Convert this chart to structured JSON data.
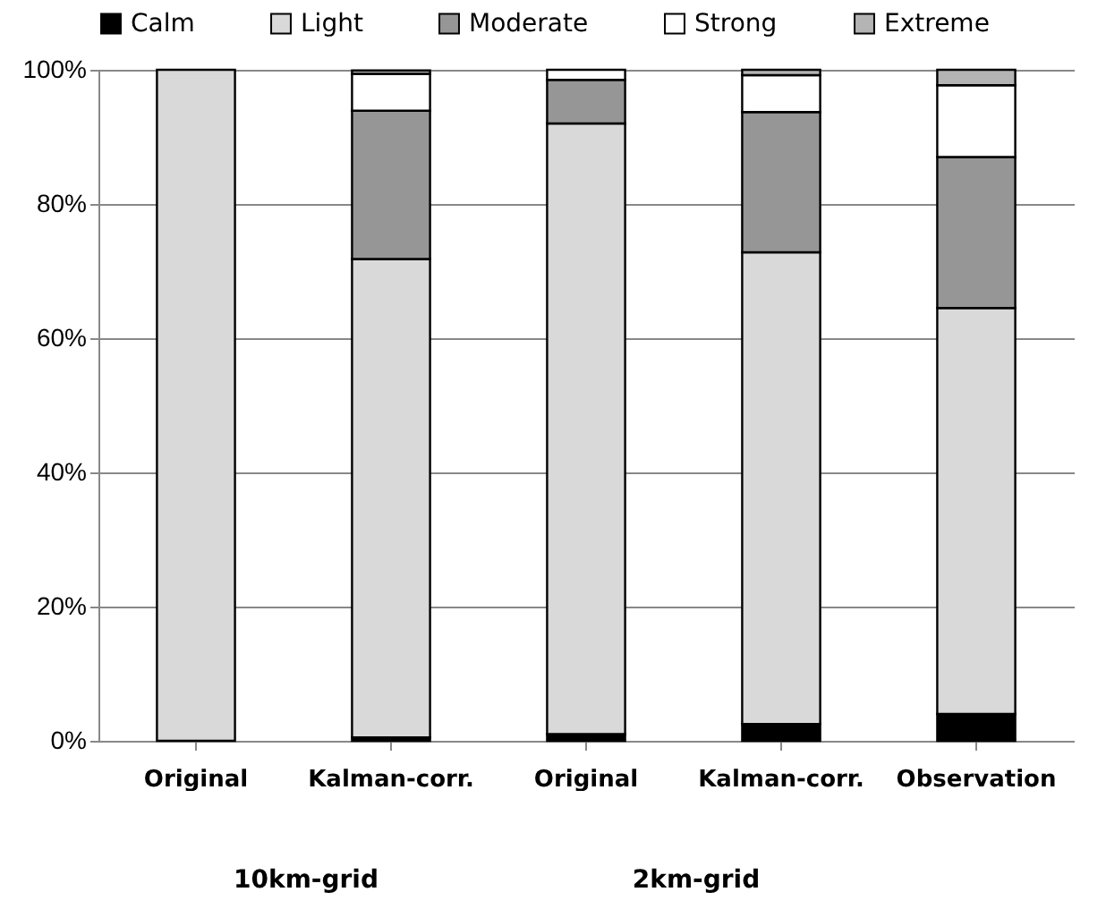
{
  "chart_data": {
    "type": "bar",
    "stacked": true,
    "categories": [
      "Original",
      "Kalman-corr.",
      "Original",
      "Kalman-corr.",
      "Observation"
    ],
    "series": [
      {
        "name": "Calm",
        "color": "#000000",
        "values": [
          null,
          0.5,
          1,
          2.5,
          4
        ]
      },
      {
        "name": "Light",
        "color": "#d9d9d9",
        "values": [
          100,
          71.3,
          91,
          70.3,
          60.5
        ]
      },
      {
        "name": "Moderate",
        "color": "#969696",
        "values": [
          null,
          22.1,
          6.5,
          20.9,
          22.5
        ]
      },
      {
        "name": "Strong",
        "color": "#ffffff",
        "values": [
          null,
          5.5,
          1.5,
          5.5,
          10.7
        ]
      },
      {
        "name": "Extreme",
        "color": "#b4b4b4",
        "values": [
          null,
          0.5,
          null,
          0.8,
          2.3
        ]
      }
    ],
    "ylim": [
      0,
      100
    ],
    "yticks": [
      {
        "value": 0,
        "label": "0%"
      },
      {
        "value": 20,
        "label": "20%"
      },
      {
        "value": 40,
        "label": "40%"
      },
      {
        "value": 60,
        "label": "60%"
      },
      {
        "value": 80,
        "label": "80%"
      },
      {
        "value": 100,
        "label": "100%"
      }
    ],
    "grid": "y",
    "legend": "top",
    "annotations": [
      "10km-grid",
      "2km-grid"
    ]
  }
}
